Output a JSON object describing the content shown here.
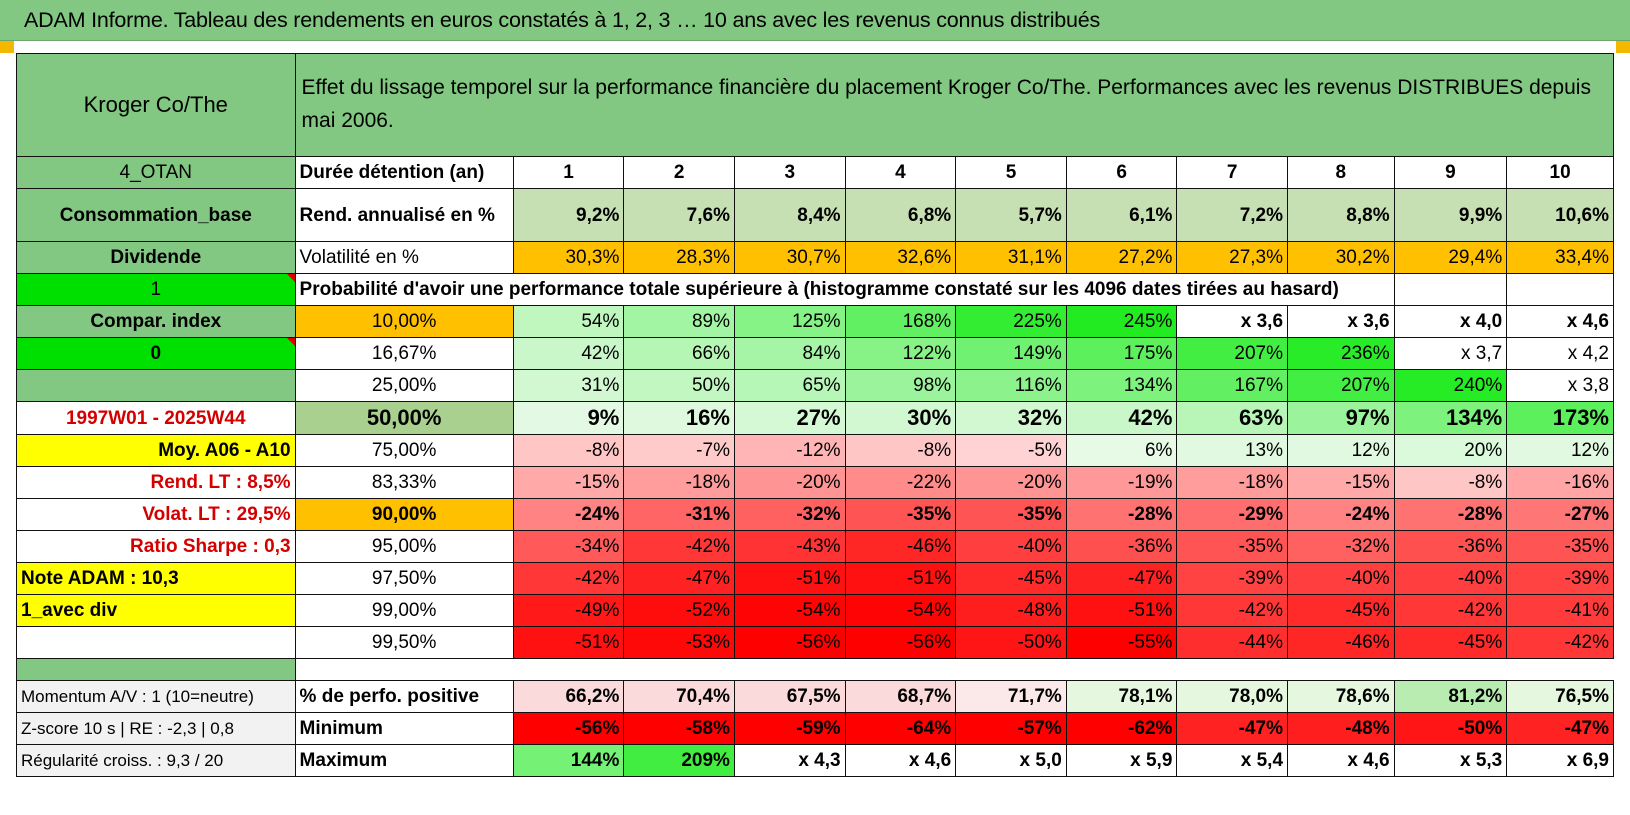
{
  "title": "ADAM Informe. Tableau des rendements en euros constatés à 1, 2, 3 … 10 ans avec les revenus connus distribués",
  "header": {
    "fund_name": "Kroger Co/The",
    "description": "Effet du lissage temporel sur la performance financière du placement Kroger Co/The. Performances avec les revenus DISTRIBUES depuis mai 2006."
  },
  "durations_label": "Durée détention (an)",
  "durations": [
    "1",
    "2",
    "3",
    "4",
    "5",
    "6",
    "7",
    "8",
    "9",
    "10"
  ],
  "rendement": {
    "label": "Rend. annualisé en %",
    "values": [
      "9,2%",
      "7,6%",
      "8,4%",
      "6,8%",
      "5,7%",
      "6,1%",
      "7,2%",
      "8,8%",
      "9,9%",
      "10,6%"
    ]
  },
  "volatilite": {
    "label": "Volatilité en %",
    "values": [
      "30,3%",
      "28,3%",
      "30,7%",
      "32,6%",
      "31,1%",
      "27,2%",
      "27,3%",
      "30,2%",
      "29,4%",
      "33,4%"
    ]
  },
  "probability_title": "Probabilité d'avoir une performance totale supérieure à (histogramme constaté sur les 4096 dates tirées au hasard)",
  "left_labels": [
    "4_OTAN",
    "Consommation_base",
    "Dividende",
    "1",
    "Compar. index",
    "0",
    "",
    "1997W01 - 2025W44",
    "Moy. A06 - A10",
    "Rend. LT :    8,5%",
    "Volat. LT :    29,5%",
    "Ratio Sharpe :     0,3",
    "Note ADAM : 10,3",
    "1_avec div",
    ""
  ],
  "prob_rows": [
    {
      "p": "10,00%",
      "values": [
        "54%",
        "89%",
        "125%",
        "168%",
        "225%",
        "245%",
        "x 3,6",
        "x 3,6",
        "x 4,0",
        "x 4,6"
      ]
    },
    {
      "p": "16,67%",
      "values": [
        "42%",
        "66%",
        "84%",
        "122%",
        "149%",
        "175%",
        "207%",
        "236%",
        "x 3,7",
        "x 4,2"
      ]
    },
    {
      "p": "25,00%",
      "values": [
        "31%",
        "50%",
        "65%",
        "98%",
        "116%",
        "134%",
        "167%",
        "207%",
        "240%",
        "x 3,8"
      ]
    },
    {
      "p": "50,00%",
      "values": [
        "9%",
        "16%",
        "27%",
        "30%",
        "32%",
        "42%",
        "63%",
        "97%",
        "134%",
        "173%"
      ]
    },
    {
      "p": "75,00%",
      "values": [
        "-8%",
        "-7%",
        "-12%",
        "-8%",
        "-5%",
        "6%",
        "13%",
        "12%",
        "20%",
        "12%"
      ]
    },
    {
      "p": "83,33%",
      "values": [
        "-15%",
        "-18%",
        "-20%",
        "-22%",
        "-20%",
        "-19%",
        "-18%",
        "-15%",
        "-8%",
        "-16%"
      ]
    },
    {
      "p": "90,00%",
      "values": [
        "-24%",
        "-31%",
        "-32%",
        "-35%",
        "-35%",
        "-28%",
        "-29%",
        "-24%",
        "-28%",
        "-27%"
      ]
    },
    {
      "p": "95,00%",
      "values": [
        "-34%",
        "-42%",
        "-43%",
        "-46%",
        "-40%",
        "-36%",
        "-35%",
        "-32%",
        "-36%",
        "-35%"
      ]
    },
    {
      "p": "97,50%",
      "values": [
        "-42%",
        "-47%",
        "-51%",
        "-51%",
        "-45%",
        "-47%",
        "-39%",
        "-40%",
        "-40%",
        "-39%"
      ]
    },
    {
      "p": "99,00%",
      "values": [
        "-49%",
        "-52%",
        "-54%",
        "-54%",
        "-48%",
        "-51%",
        "-42%",
        "-45%",
        "-42%",
        "-41%"
      ]
    },
    {
      "p": "99,50%",
      "values": [
        "-51%",
        "-53%",
        "-56%",
        "-56%",
        "-50%",
        "-55%",
        "-44%",
        "-46%",
        "-45%",
        "-42%"
      ]
    }
  ],
  "bottom_rows": [
    {
      "left": "Momentum A/V : 1 (10=neutre)",
      "label": "% de perfo. positive",
      "values": [
        "66,2%",
        "70,4%",
        "67,5%",
        "68,7%",
        "71,7%",
        "78,1%",
        "78,0%",
        "78,6%",
        "81,2%",
        "76,5%"
      ]
    },
    {
      "left": "Z-score 10 s | RE : -2,3 | 0,8",
      "label": "Minimum",
      "values": [
        "-56%",
        "-58%",
        "-59%",
        "-64%",
        "-57%",
        "-62%",
        "-47%",
        "-48%",
        "-50%",
        "-47%"
      ]
    },
    {
      "left": "Régularité croiss. : 9,3 / 20",
      "label": "Maximum",
      "values": [
        "144%",
        "209%",
        "x 4,3",
        "x 4,6",
        "x 5,0",
        "x 5,9",
        "x 5,4",
        "x 4,6",
        "x 5,3",
        "x 6,9"
      ]
    }
  ],
  "colors": {
    "title_green": "#82c882",
    "bright_green": "#00e000",
    "yellow": "#ffff00",
    "orange": "#ffc000",
    "pale_green": "#a9d08e",
    "light_green": "#c6e0b4"
  }
}
